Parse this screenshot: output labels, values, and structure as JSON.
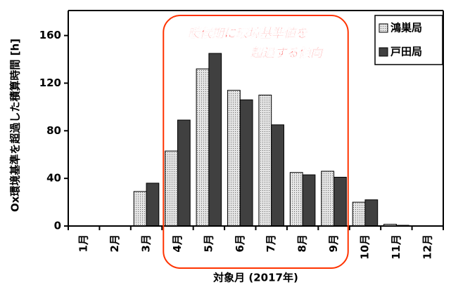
{
  "chart_data": {
    "type": "bar",
    "y_label": "Ox環境基準を超過した積算時間 [h]",
    "x_label": "対象月 (2017年)",
    "annotation": [
      "暖候期に環境基準値を",
      "超過する傾向"
    ],
    "categories": [
      "1月",
      "2月",
      "3月",
      "4月",
      "5月",
      "6月",
      "7月",
      "8月",
      "9月",
      "10月",
      "11月",
      "12月"
    ],
    "series": [
      {
        "name": "鴻巣局",
        "color": "#e6e6e6",
        "pattern": "dots",
        "values": [
          0,
          0,
          29,
          63,
          132,
          114,
          110,
          45,
          46,
          20,
          1.5,
          0
        ]
      },
      {
        "name": "戸田局",
        "color": "#404040",
        "values": [
          0,
          0,
          36,
          89,
          145,
          106,
          85,
          43,
          41,
          22,
          0.6,
          0
        ]
      }
    ],
    "ylim": [
      0,
      181
    ],
    "yticks": [
      0,
      40,
      80,
      120,
      160
    ],
    "legend": "upper right"
  }
}
